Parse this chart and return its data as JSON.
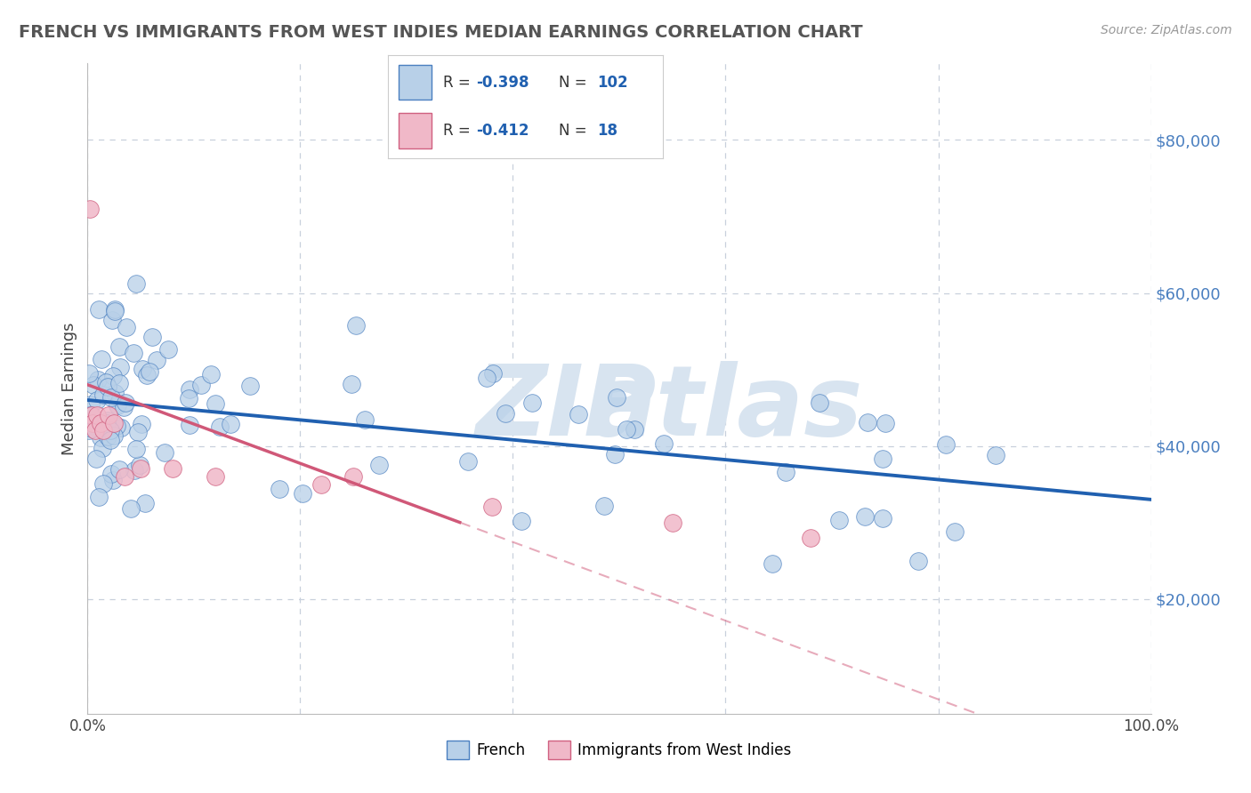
{
  "title": "FRENCH VS IMMIGRANTS FROM WEST INDIES MEDIAN EARNINGS CORRELATION CHART",
  "source": "Source: ZipAtlas.com",
  "ylabel": "Median Earnings",
  "xlim": [
    0.0,
    100.0
  ],
  "ylim": [
    5000,
    90000
  ],
  "yticks": [
    20000,
    40000,
    60000,
    80000
  ],
  "ytick_labels": [
    "$20,000",
    "$40,000",
    "$60,000",
    "$80,000"
  ],
  "french_R": -0.398,
  "french_N": 102,
  "west_indies_R": -0.412,
  "west_indies_N": 18,
  "french_color": "#b8d0e8",
  "french_edge_color": "#4a7fc0",
  "french_line_color": "#2060b0",
  "west_indies_color": "#f0b8c8",
  "west_indies_edge_color": "#d06080",
  "west_indies_line_color": "#d05878",
  "background_color": "#ffffff",
  "grid_color": "#c8d0dc",
  "legend_border_color": "#cccccc",
  "title_color": "#555555",
  "source_color": "#999999",
  "ylabel_color": "#444444",
  "ytick_color": "#4a7fc0",
  "xtick_color": "#444444",
  "watermark_color": "#d8e4f0",
  "legend_text_color": "#2060b0",
  "legend_label_color": "#333333"
}
